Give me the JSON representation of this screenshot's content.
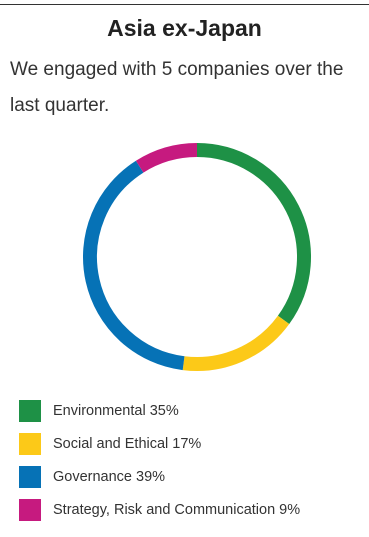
{
  "header": {
    "title": "Asia ex-Japan",
    "intro": "We engaged with 5 companies over the last quarter."
  },
  "chart_data": {
    "type": "pie",
    "style": "donut",
    "categories": [
      "Environmental",
      "Social and Ethical",
      "Governance",
      "Strategy, Risk and Communication"
    ],
    "values": [
      35,
      17,
      39,
      9
    ],
    "unit": "%",
    "colors": [
      "#1e9146",
      "#fcc918",
      "#0672b6",
      "#c61a7f"
    ],
    "legend_labels": [
      "Environmental 35%",
      "Social and Ethical 17%",
      "Governance 39%",
      "Strategy, Risk and Communication 9%"
    ],
    "legend_position": "bottom-left"
  }
}
